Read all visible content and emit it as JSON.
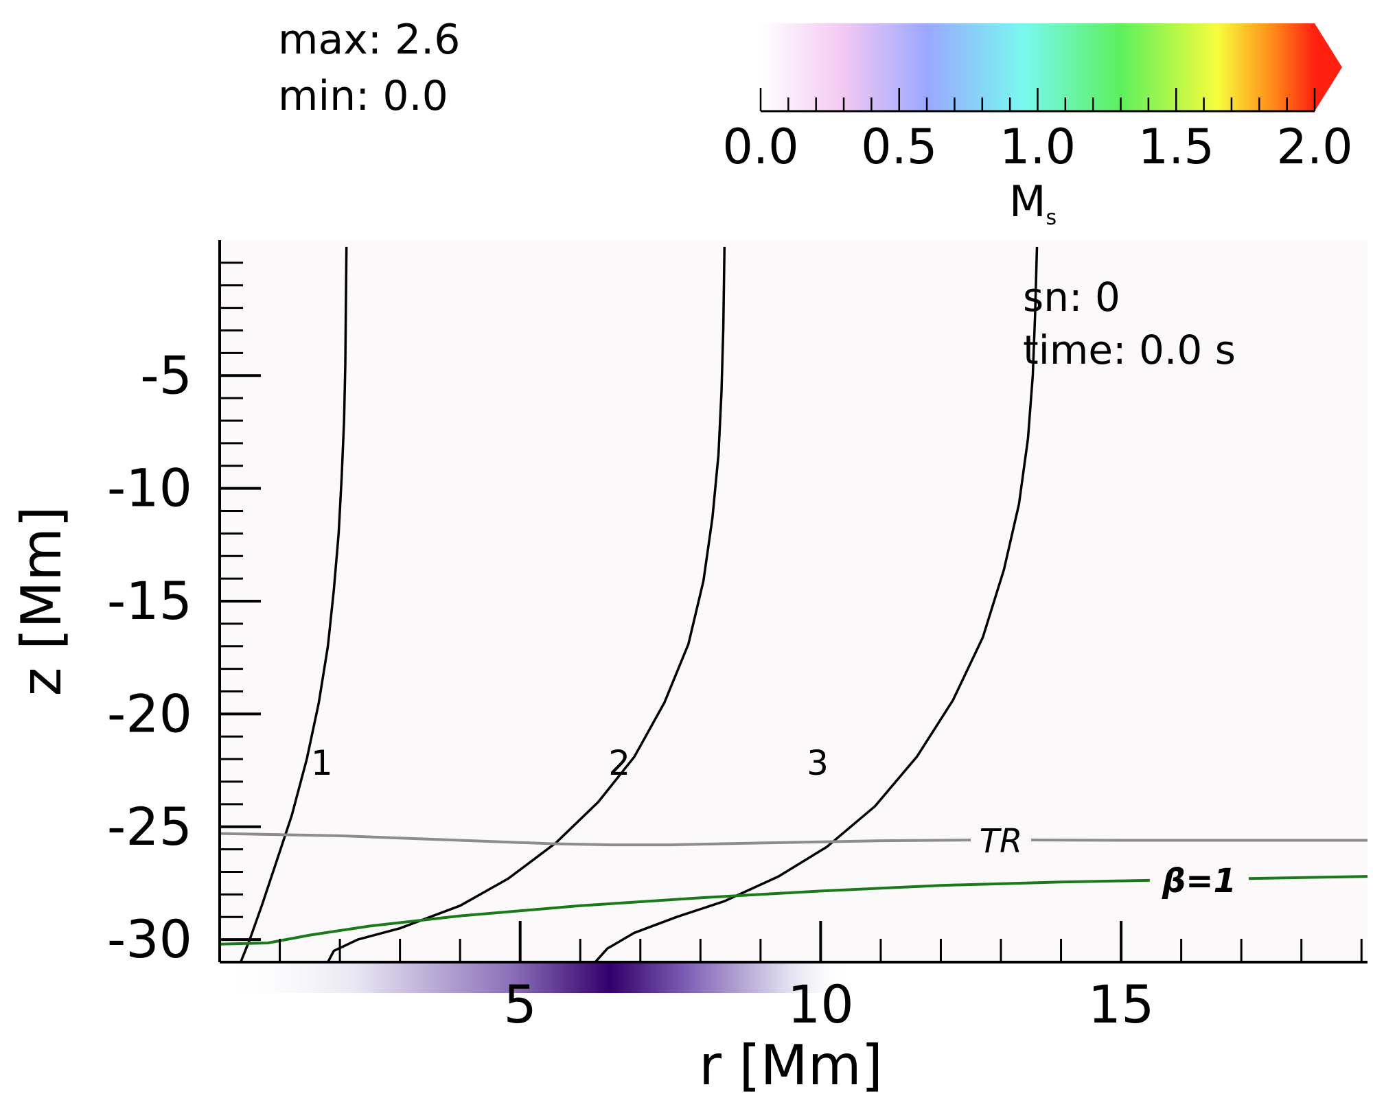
{
  "info": {
    "max_label": "max: 2.6",
    "min_label": "min: 0.0",
    "snapshot_label": "sn: 0",
    "time_label": "time: 0.0 s"
  },
  "colorbar": {
    "label_main": "M",
    "label_sub": "s",
    "min": 0.0,
    "max": 2.0,
    "extend": "max",
    "ticks": [
      "0.0",
      "0.5",
      "1.0",
      "1.5",
      "2.0"
    ],
    "stops": [
      {
        "v": 0.0,
        "color": "#ffffff"
      },
      {
        "v": 0.3,
        "color": "#f3c8f3"
      },
      {
        "v": 0.6,
        "color": "#9aa8ff"
      },
      {
        "v": 0.95,
        "color": "#78f8f0"
      },
      {
        "v": 1.3,
        "color": "#5cf05c"
      },
      {
        "v": 1.65,
        "color": "#f8fc3c"
      },
      {
        "v": 1.85,
        "color": "#ff8a18"
      },
      {
        "v": 2.0,
        "color": "#ff2010"
      }
    ],
    "extend_color": "#ff2010"
  },
  "colors": {
    "background_field": "#fcf9fb",
    "fieldline": "#000000",
    "tr_line": "#8c8c8c",
    "beta_line": "#1a7a1a",
    "density_band_dark": "#33006b"
  },
  "chart_data": {
    "type": "line",
    "xlabel": "r [Mm]",
    "ylabel": "z [Mm]",
    "xlim": [
      0.0,
      19.1
    ],
    "ylim": [
      -31.0,
      1.0
    ],
    "x_ticks": [
      5,
      10,
      15
    ],
    "y_ticks": [
      -5,
      -10,
      -15,
      -20,
      -25,
      -30
    ],
    "x_tick_labels": [
      "5",
      "10",
      "15"
    ],
    "y_tick_labels": [
      "-5",
      "-10",
      "-15",
      "-20",
      "-25",
      "-30"
    ],
    "grid": false,
    "series": [
      {
        "name": "1",
        "kind": "fieldline",
        "points": [
          [
            0.35,
            -31.0
          ],
          [
            0.5,
            -30.0
          ],
          [
            0.7,
            -28.5
          ],
          [
            0.95,
            -26.5
          ],
          [
            1.2,
            -24.5
          ],
          [
            1.45,
            -22.0
          ],
          [
            1.65,
            -19.5
          ],
          [
            1.8,
            -17.0
          ],
          [
            1.9,
            -14.5
          ],
          [
            1.98,
            -12.0
          ],
          [
            2.03,
            -9.5
          ],
          [
            2.07,
            -7.0
          ],
          [
            2.09,
            -4.5
          ],
          [
            2.1,
            -2.0
          ],
          [
            2.11,
            0.7
          ]
        ]
      },
      {
        "name": "2",
        "kind": "fieldline",
        "points": [
          [
            1.8,
            -31.0
          ],
          [
            1.9,
            -30.5
          ],
          [
            2.3,
            -30.0
          ],
          [
            3.0,
            -29.5
          ],
          [
            4.0,
            -28.5
          ],
          [
            4.8,
            -27.3
          ],
          [
            5.6,
            -25.7
          ],
          [
            6.3,
            -23.9
          ],
          [
            6.9,
            -21.9
          ],
          [
            7.4,
            -19.5
          ],
          [
            7.8,
            -16.9
          ],
          [
            8.05,
            -14.1
          ],
          [
            8.2,
            -11.3
          ],
          [
            8.3,
            -8.5
          ],
          [
            8.35,
            -5.7
          ],
          [
            8.38,
            -2.9
          ],
          [
            8.4,
            0.7
          ]
        ]
      },
      {
        "name": "3",
        "kind": "fieldline",
        "points": [
          [
            6.25,
            -31.0
          ],
          [
            6.45,
            -30.4
          ],
          [
            6.9,
            -29.7
          ],
          [
            7.6,
            -29.0
          ],
          [
            8.4,
            -28.3
          ],
          [
            9.3,
            -27.2
          ],
          [
            10.1,
            -25.9
          ],
          [
            10.9,
            -24.1
          ],
          [
            11.6,
            -21.9
          ],
          [
            12.2,
            -19.4
          ],
          [
            12.7,
            -16.6
          ],
          [
            13.05,
            -13.6
          ],
          [
            13.3,
            -10.7
          ],
          [
            13.45,
            -7.8
          ],
          [
            13.53,
            -5.0
          ],
          [
            13.57,
            -2.2
          ],
          [
            13.6,
            0.7
          ]
        ]
      },
      {
        "name": "TR",
        "kind": "contour",
        "points": [
          [
            0.0,
            -25.3
          ],
          [
            2.0,
            -25.4
          ],
          [
            4.0,
            -25.6
          ],
          [
            5.5,
            -25.75
          ],
          [
            6.5,
            -25.8
          ],
          [
            7.5,
            -25.8
          ],
          [
            9.0,
            -25.72
          ],
          [
            11.0,
            -25.62
          ],
          [
            13.0,
            -25.58
          ],
          [
            15.0,
            -25.6
          ],
          [
            17.0,
            -25.6
          ],
          [
            19.1,
            -25.6
          ]
        ]
      },
      {
        "name": "β=1",
        "kind": "contour",
        "points": [
          [
            0.0,
            -30.2
          ],
          [
            0.8,
            -30.15
          ],
          [
            1.5,
            -29.8
          ],
          [
            2.5,
            -29.4
          ],
          [
            4.0,
            -28.95
          ],
          [
            6.0,
            -28.5
          ],
          [
            8.0,
            -28.15
          ],
          [
            10.0,
            -27.85
          ],
          [
            12.0,
            -27.6
          ],
          [
            14.0,
            -27.45
          ],
          [
            16.0,
            -27.35
          ],
          [
            19.1,
            -27.2
          ]
        ]
      }
    ],
    "annotations": [
      {
        "text": "1",
        "x": 1.7,
        "y": -22.7
      },
      {
        "text": "2",
        "x": 6.65,
        "y": -22.7
      },
      {
        "text": "3",
        "x": 9.95,
        "y": -22.7
      }
    ],
    "density_band_peak_r": 6.5
  }
}
